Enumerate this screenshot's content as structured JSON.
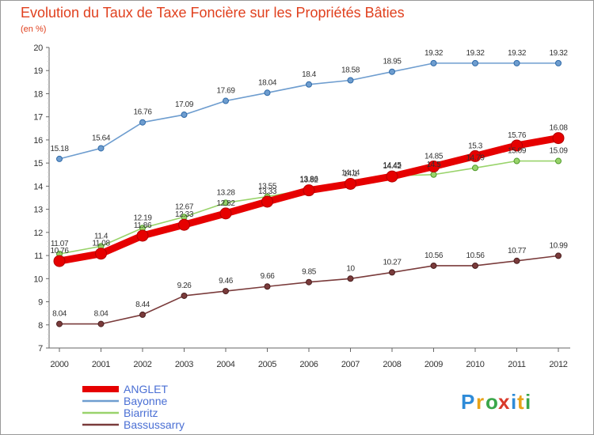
{
  "chart_data": {
    "type": "line",
    "title": "Evolution du Taux de Taxe Foncière sur les Propriétés Bâties",
    "subtitle": "(en %)",
    "x": [
      "2000",
      "2001",
      "2002",
      "2003",
      "2004",
      "2005",
      "2006",
      "2007",
      "2008",
      "2009",
      "2010",
      "2011",
      "2012"
    ],
    "ylim": [
      7,
      20
    ],
    "yticks": [
      "7",
      "8",
      "9",
      "10",
      "11",
      "12",
      "13",
      "14",
      "15",
      "16",
      "17",
      "18",
      "19",
      "20"
    ],
    "grid": false,
    "legend_position": "bottom-left",
    "series": [
      {
        "name": "ANGLET",
        "color": "#e60000",
        "values": [
          10.76,
          11.08,
          11.86,
          12.33,
          12.82,
          13.33,
          13.82,
          14.1,
          14.42,
          14.85,
          15.3,
          15.76,
          16.08
        ],
        "labels": [
          "10.76",
          "11.08",
          "11.86",
          "12.33",
          "12.82",
          "13.33",
          "13.82",
          "14.1",
          "14.42",
          "14.85",
          "15.3",
          "15.76",
          "16.08"
        ]
      },
      {
        "name": "Bayonne",
        "color": "#6e9dcf",
        "values": [
          15.18,
          15.64,
          16.76,
          17.09,
          17.69,
          18.04,
          18.4,
          18.58,
          18.95,
          19.32,
          19.32,
          19.32,
          19.32
        ],
        "labels": [
          "15.18",
          "15.64",
          "16.76",
          "17.09",
          "17.69",
          "18.04",
          "18.4",
          "18.58",
          "18.95",
          "19.32",
          "19.32",
          "19.32",
          "19.32"
        ]
      },
      {
        "name": "Biarritz",
        "color": "#99d36b",
        "values": [
          11.07,
          11.4,
          12.19,
          12.67,
          13.28,
          13.55,
          13.86,
          14.14,
          14.45,
          14.5,
          14.79,
          15.09,
          15.09
        ],
        "labels": [
          "11.07",
          "11.4",
          "12.19",
          "12.67",
          "13.28",
          "13.55",
          "13.86",
          "14.14",
          "14.45",
          "14.5",
          "14.79",
          "15.09",
          "15.09"
        ]
      },
      {
        "name": "Bassussarry",
        "color": "#7a3b3b",
        "values": [
          8.04,
          8.04,
          8.44,
          9.26,
          9.46,
          9.66,
          9.85,
          10,
          10.27,
          10.56,
          10.56,
          10.77,
          10.99
        ],
        "labels": [
          "8.04",
          "8.04",
          "8.44",
          "9.26",
          "9.46",
          "9.66",
          "9.85",
          "10",
          "10.27",
          "10.56",
          "10.56",
          "10.77",
          "10.99"
        ]
      }
    ]
  },
  "brand": {
    "letters": [
      "P",
      "r",
      "o",
      "x",
      "i",
      "t",
      "i"
    ],
    "colors": [
      "#2e8bd8",
      "#e8a319",
      "#3aa64a",
      "#d93a2b",
      "#2e8bd8",
      "#e8a319",
      "#3aa64a"
    ]
  }
}
